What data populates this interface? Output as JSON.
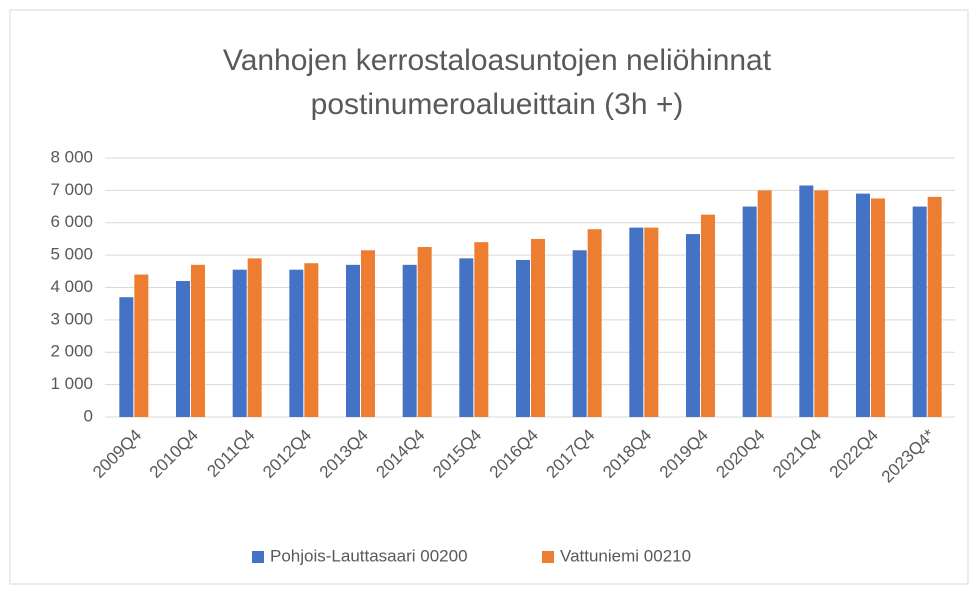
{
  "chart_data": {
    "type": "bar",
    "title": [
      "Vanhojen kerrostaloasuntojen neliöhinnat",
      "postinumeroalueittain (3h +)"
    ],
    "categories": [
      "2009Q4",
      "2010Q4",
      "2011Q4",
      "2012Q4",
      "2013Q4",
      "2014Q4",
      "2015Q4",
      "2016Q4",
      "2017Q4",
      "2018Q4",
      "2019Q4",
      "2020Q4",
      "2021Q4",
      "2022Q4",
      "2023Q4*"
    ],
    "series": [
      {
        "name": "Pohjois-Lauttasaari 00200",
        "color": "#4472c4",
        "values": [
          3700,
          4200,
          4550,
          4550,
          4700,
          4700,
          4900,
          4850,
          5150,
          5850,
          5650,
          6500,
          7150,
          6900,
          6500
        ]
      },
      {
        "name": "Vattuniemi 00210",
        "color": "#ed7d31",
        "values": [
          4400,
          4700,
          4900,
          4750,
          5150,
          5250,
          5400,
          5500,
          5800,
          5850,
          6250,
          7000,
          7000,
          6750,
          6800
        ]
      }
    ],
    "ylim": [
      0,
      8000
    ],
    "yticks": [
      0,
      {
        "value": 1000,
        "label": "1 000"
      },
      {
        "value": 2000,
        "label": "2 000"
      },
      {
        "value": 3000,
        "label": "3 000"
      },
      {
        "value": 4000,
        "label": "4 000"
      },
      {
        "value": 5000,
        "label": "5 000"
      },
      {
        "value": 6000,
        "label": "6 000"
      },
      {
        "value": 7000,
        "label": "7 000"
      },
      {
        "value": 8000,
        "label": "8 000"
      }
    ],
    "grid": true,
    "legend": "bottom"
  }
}
